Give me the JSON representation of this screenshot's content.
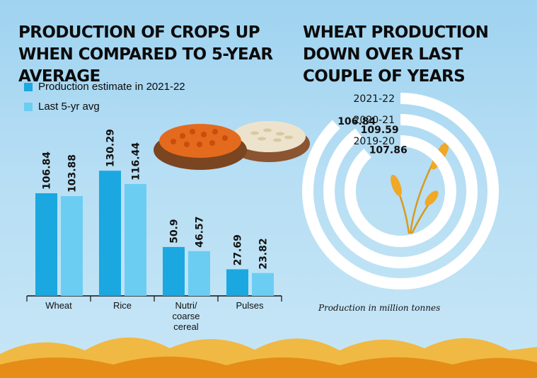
{
  "left_chart": {
    "title": "PRODUCTION OF CROPS UP WHEN COMPARED TO 5-YEAR AVERAGE",
    "legend": [
      {
        "label": "Production estimate in 2021-22",
        "color": "#1ba8e0"
      },
      {
        "label": "Last 5-yr avg",
        "color": "#6ccdf2"
      }
    ]
  },
  "right_chart": {
    "title": "WHEAT PRODUCTION DOWN OVER LAST COUPLE OF YEARS",
    "note": "Production in million tonnes"
  },
  "chart_data": [
    {
      "type": "bar",
      "title": "PRODUCTION OF CROPS UP WHEN COMPARED TO 5-YEAR AVERAGE",
      "categories": [
        "Wheat",
        "Rice",
        "Nutri/ coarse cereal",
        "Pulses"
      ],
      "series": [
        {
          "name": "Production estimate in 2021-22",
          "values": [
            106.84,
            130.29,
            50.9,
            27.69
          ],
          "labels": [
            "106.84",
            "130.29",
            "50.9",
            "27.69"
          ],
          "color": "#1ba8e0"
        },
        {
          "name": "Last 5-yr avg",
          "values": [
            103.88,
            116.44,
            46.57,
            23.82
          ],
          "labels": [
            "103.88",
            "116.44",
            "46.57",
            "23.82"
          ],
          "color": "#6ccdf2"
        }
      ],
      "ylim": [
        0,
        140
      ],
      "grid": false
    },
    {
      "type": "radial-bar",
      "title": "WHEAT PRODUCTION DOWN OVER LAST COUPLE OF YEARS",
      "categories": [
        "2021-22",
        "2020-21",
        "2019-20"
      ],
      "values": [
        106.84,
        109.59,
        107.86
      ],
      "labels": [
        "106.84",
        "109.59",
        "107.86"
      ],
      "unit": "million tonnes",
      "color": "#ffffff"
    }
  ]
}
